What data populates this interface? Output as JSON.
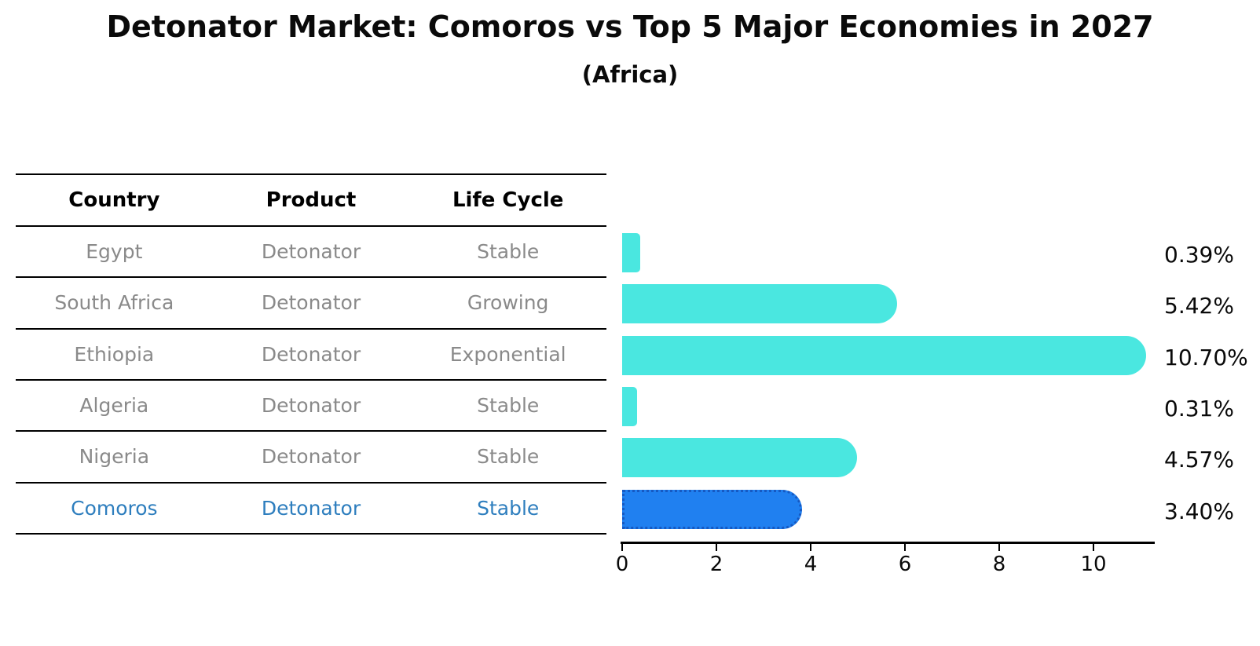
{
  "header": {
    "title": "Detonator Market: Comoros vs Top 5 Major Economies in 2027",
    "subtitle": "(Africa)"
  },
  "table": {
    "columns": [
      "Country",
      "Product",
      "Life Cycle"
    ],
    "rows": [
      {
        "country": "Egypt",
        "product": "Detonator",
        "life_cycle": "Stable",
        "highlighted": false
      },
      {
        "country": "South Africa",
        "product": "Detonator",
        "life_cycle": "Growing",
        "highlighted": false
      },
      {
        "country": "Ethiopia",
        "product": "Detonator",
        "life_cycle": "Exponential",
        "highlighted": false
      },
      {
        "country": "Algeria",
        "product": "Detonator",
        "life_cycle": "Stable",
        "highlighted": false
      },
      {
        "country": "Nigeria",
        "product": "Detonator",
        "life_cycle": "Stable",
        "highlighted": false
      },
      {
        "country": "Comoros",
        "product": "Detonator",
        "life_cycle": "Stable",
        "highlighted": true
      }
    ]
  },
  "chart_data": {
    "type": "bar",
    "orientation": "horizontal",
    "title": "Detonator Market: Comoros vs Top 5 Major Economies in 2027",
    "subtitle": "(Africa)",
    "categories": [
      "Egypt",
      "South Africa",
      "Ethiopia",
      "Algeria",
      "Nigeria",
      "Comoros"
    ],
    "values": [
      0.39,
      5.42,
      10.7,
      0.31,
      4.57,
      3.4
    ],
    "labels": [
      "0.39%",
      "5.42%",
      "10.70%",
      "0.31%",
      "4.57%",
      "3.40%"
    ],
    "xlabel": "",
    "ylabel": "",
    "xlim": [
      0,
      11.3
    ],
    "x_ticks": [
      0,
      2,
      4,
      6,
      8,
      10
    ],
    "grid": false,
    "legend": false,
    "highlight_index": 5,
    "colors": {
      "default_bar": "#4ae7e0",
      "highlight_bar": "#2080f0",
      "highlight_bar_border": "#1659c2",
      "highlight_text": "#2e7ebe",
      "table_text": "#8a8a8a",
      "axis": "#000000"
    }
  }
}
